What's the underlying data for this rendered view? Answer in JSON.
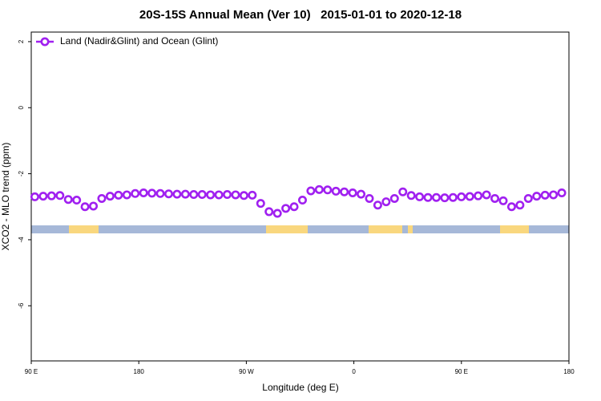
{
  "chart_data": {
    "type": "line",
    "title": "20S-15S Annual Mean (Ver 10)   2015-01-01 to 2020-12-18",
    "x_label": "Longitude (deg E)",
    "y_label": "XCO2 - MLO trend (ppm)",
    "x": [
      93,
      100,
      107,
      114,
      121,
      128,
      135,
      142,
      149,
      156,
      163,
      170,
      177,
      184,
      191,
      198,
      205,
      212,
      219,
      226,
      233,
      240,
      247,
      254,
      261,
      268,
      275,
      282,
      289,
      296,
      303,
      310,
      317,
      324,
      331,
      338,
      345,
      352,
      359,
      366,
      373,
      380,
      387,
      394,
      401,
      408,
      415,
      422,
      429,
      436,
      443,
      450,
      457,
      464,
      471,
      478,
      485,
      492,
      499,
      506,
      513,
      520,
      527,
      534
    ],
    "series": [
      {
        "name": "Land (Nadir&Glint) and Ocean (Glint)",
        "color": "#a020f0",
        "values": [
          -2.7,
          -2.68,
          -2.67,
          -2.66,
          -2.78,
          -2.8,
          -3.0,
          -2.98,
          -2.75,
          -2.68,
          -2.65,
          -2.64,
          -2.6,
          -2.58,
          -2.59,
          -2.6,
          -2.61,
          -2.62,
          -2.62,
          -2.63,
          -2.63,
          -2.64,
          -2.64,
          -2.63,
          -2.64,
          -2.66,
          -2.65,
          -2.9,
          -3.15,
          -3.2,
          -3.05,
          -3.0,
          -2.8,
          -2.52,
          -2.48,
          -2.49,
          -2.53,
          -2.55,
          -2.58,
          -2.62,
          -2.75,
          -2.95,
          -2.85,
          -2.75,
          -2.55,
          -2.66,
          -2.7,
          -2.72,
          -2.72,
          -2.73,
          -2.72,
          -2.7,
          -2.69,
          -2.67,
          -2.64,
          -2.75,
          -2.82,
          -3.0,
          -2.95,
          -2.75,
          -2.68,
          -2.65,
          -2.64,
          -2.58
        ]
      }
    ],
    "xlim": [
      90,
      540
    ],
    "xticks": [
      {
        "value": 90,
        "label": "90 E"
      },
      180,
      {
        "value": 270,
        "label": "90 W"
      },
      {
        "value": 360,
        "label": "0"
      },
      {
        "value": 450,
        "label": "90 E"
      },
      {
        "value": 540,
        "label": "180"
      }
    ],
    "ylim": [
      -7.67,
      2.29
    ],
    "yticks": [
      2,
      0,
      -2,
      -4,
      -6
    ],
    "legend": "top-left"
  }
}
